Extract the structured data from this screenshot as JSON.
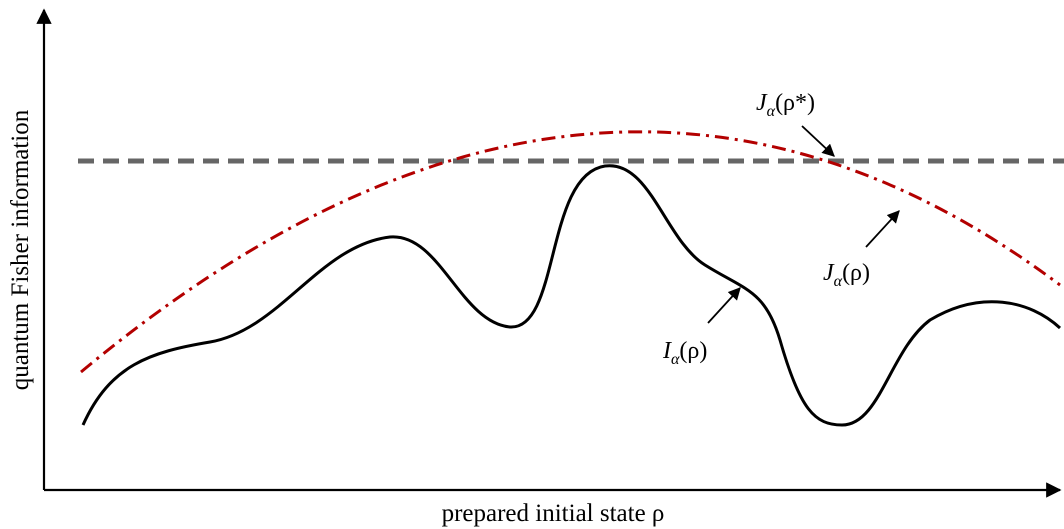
{
  "figure": {
    "y_axis_label": "quantum Fisher information",
    "x_axis_label": "prepared initial state ρ"
  },
  "curves": {
    "bound_optimal": {
      "label": "J",
      "sub": "α",
      "arg": "(ρ*)",
      "style": "dashed",
      "color": "#666666"
    },
    "bound": {
      "label": "J",
      "sub": "α",
      "arg": "(ρ)",
      "style": "dash-dot",
      "color": "#b30000"
    },
    "qfi": {
      "label": "I",
      "sub": "α",
      "arg": "(ρ)",
      "style": "solid",
      "color": "#000000"
    }
  }
}
